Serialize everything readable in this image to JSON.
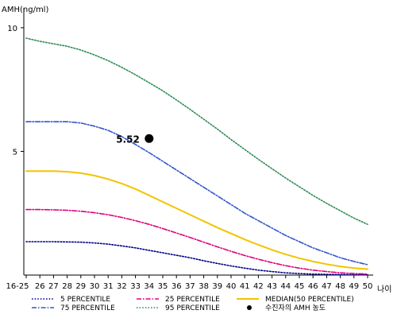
{
  "chart_data": {
    "type": "line",
    "ylabel": "AMH(ng/ml)",
    "xlabel": "나이",
    "ylim": [
      0,
      10.8
    ],
    "yticks": [
      5,
      10
    ],
    "categories": [
      "16-25",
      "26",
      "27",
      "28",
      "29",
      "30",
      "31",
      "32",
      "33",
      "34",
      "35",
      "36",
      "37",
      "38",
      "39",
      "40",
      "41",
      "42",
      "43",
      "44",
      "45",
      "46",
      "47",
      "48",
      "49",
      "50"
    ],
    "series": [
      {
        "name": "5 PERCENTILE",
        "color": "#00008B",
        "style": "dotted",
        "values": [
          1.35,
          1.35,
          1.35,
          1.34,
          1.33,
          1.3,
          1.25,
          1.18,
          1.1,
          1.0,
          0.9,
          0.8,
          0.7,
          0.58,
          0.47,
          0.37,
          0.28,
          0.2,
          0.14,
          0.09,
          0.06,
          0.04,
          0.03,
          0.02,
          0.01,
          0.01
        ]
      },
      {
        "name": "25 PERCENTILE",
        "color": "#E0007A",
        "style": "dashdot",
        "values": [
          2.65,
          2.65,
          2.64,
          2.62,
          2.58,
          2.52,
          2.44,
          2.33,
          2.2,
          2.05,
          1.88,
          1.7,
          1.52,
          1.33,
          1.14,
          0.96,
          0.79,
          0.64,
          0.5,
          0.38,
          0.28,
          0.2,
          0.14,
          0.09,
          0.06,
          0.04
        ]
      },
      {
        "name": "75 PERCENTILE",
        "color": "#3355CC",
        "style": "dashdot",
        "values": [
          6.2,
          6.2,
          6.2,
          6.2,
          6.15,
          6.02,
          5.85,
          5.6,
          5.28,
          4.95,
          4.6,
          4.25,
          3.9,
          3.55,
          3.2,
          2.85,
          2.5,
          2.2,
          1.9,
          1.6,
          1.35,
          1.1,
          0.9,
          0.7,
          0.55,
          0.42
        ]
      },
      {
        "name": "95 PERCENTILE",
        "color": "#2E8B57",
        "style": "dotted",
        "values": [
          9.58,
          9.45,
          9.35,
          9.25,
          9.1,
          8.9,
          8.67,
          8.4,
          8.1,
          7.78,
          7.45,
          7.08,
          6.7,
          6.3,
          5.9,
          5.48,
          5.08,
          4.68,
          4.3,
          3.92,
          3.57,
          3.22,
          2.9,
          2.6,
          2.3,
          2.05
        ]
      },
      {
        "name": "MEDIAN(50 PERCENTILE)",
        "color": "#F2C400",
        "style": "solid",
        "values": [
          4.2,
          4.2,
          4.2,
          4.18,
          4.12,
          4.02,
          3.88,
          3.7,
          3.48,
          3.22,
          2.96,
          2.7,
          2.44,
          2.18,
          1.92,
          1.68,
          1.44,
          1.22,
          1.02,
          0.84,
          0.68,
          0.55,
          0.44,
          0.35,
          0.28,
          0.24
        ]
      }
    ],
    "points": [
      {
        "name": "수진자의 AMH 농도",
        "x": "34",
        "y": 5.52,
        "label": "5.52",
        "color": "#000000"
      }
    ],
    "legend": {
      "placement": "bottom",
      "items": [
        {
          "label": "5 PERCENTILE",
          "color": "#00008B",
          "style": "dotted"
        },
        {
          "label": "25 PERCENTILE",
          "color": "#E0007A",
          "style": "dashdot"
        },
        {
          "label": "MEDIAN(50 PERCENTILE)",
          "color": "#F2C400",
          "style": "solid"
        },
        {
          "label": "75 PERCENTILE",
          "color": "#3355CC",
          "style": "dashdot"
        },
        {
          "label": "95 PERCENTILE",
          "color": "#2E8B57",
          "style": "dotted"
        },
        {
          "label": "수진자의 AMH 농도",
          "color": "#000000",
          "style": "dot"
        }
      ]
    }
  }
}
